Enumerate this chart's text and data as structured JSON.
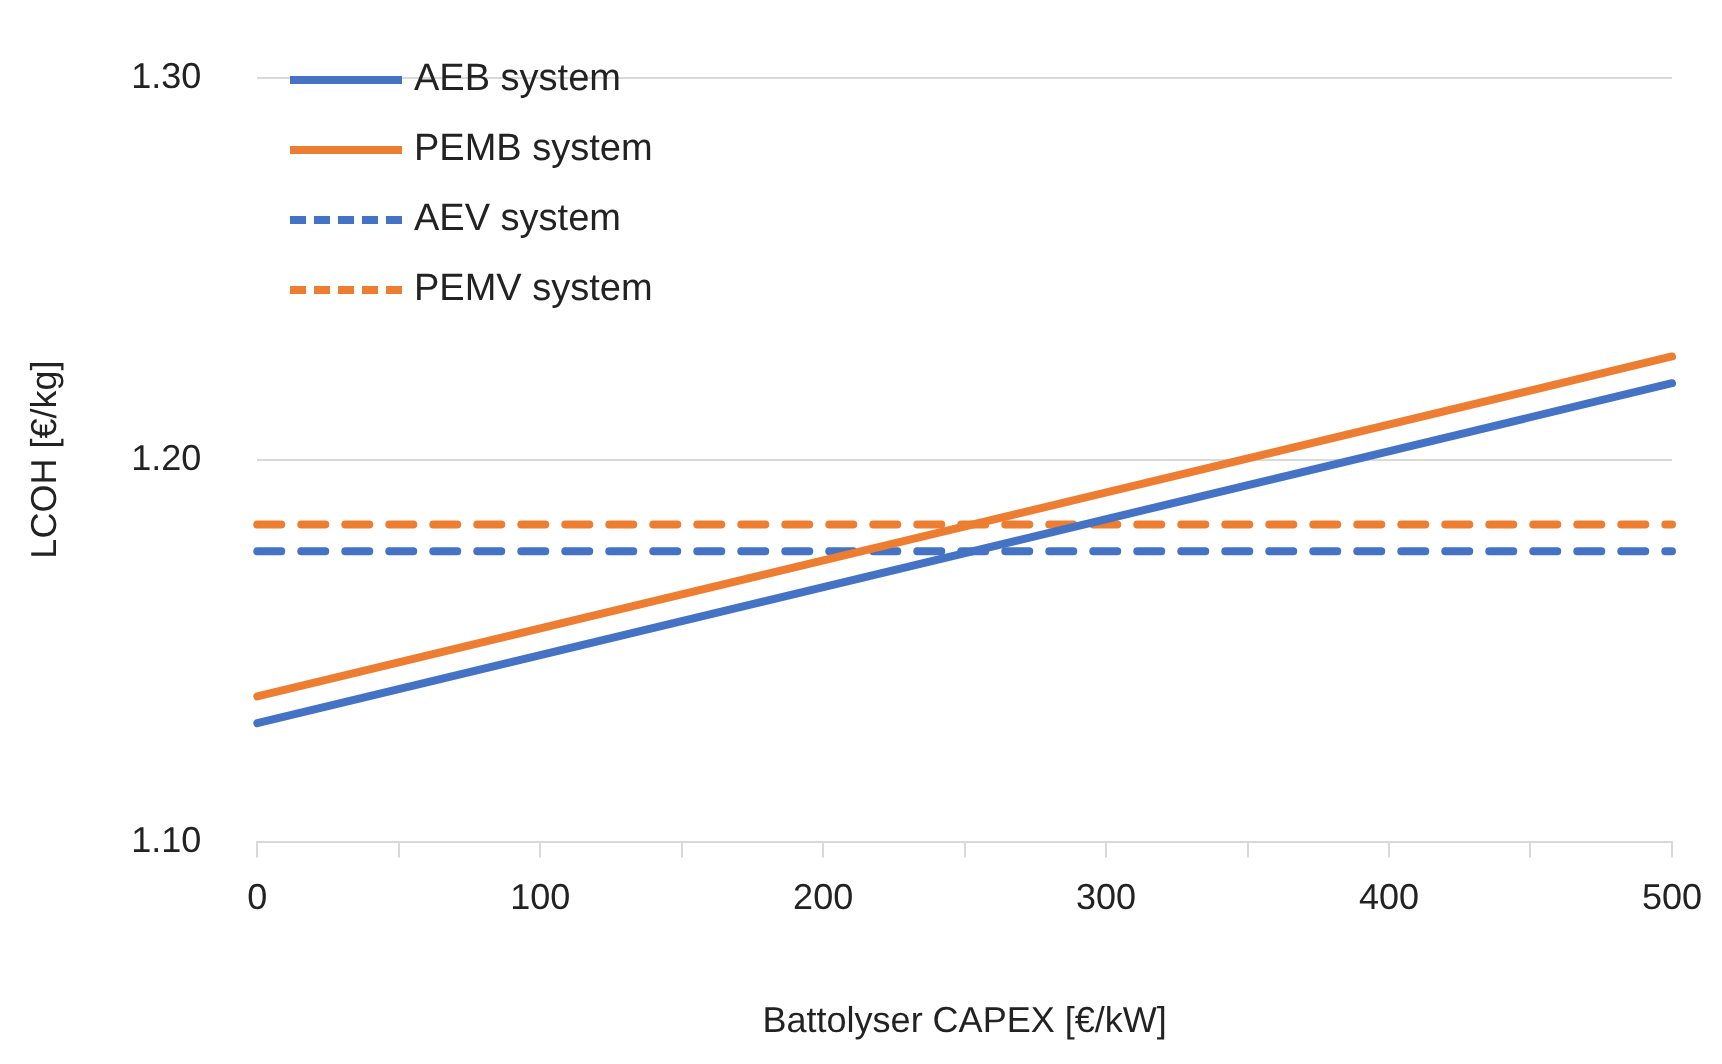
{
  "chart_data": {
    "type": "line",
    "xlabel": "Battolyser CAPEX [€/kW]",
    "ylabel": "LCOH [€/kg]",
    "x": [
      0,
      500
    ],
    "xlim": [
      0,
      500
    ],
    "xticks": [
      0,
      {
        "value": 50,
        "label": null
      },
      100,
      {
        "value": 150,
        "label": null
      },
      200,
      {
        "value": 250,
        "label": null
      },
      300,
      {
        "value": 350,
        "label": null
      },
      400,
      {
        "value": 450,
        "label": null
      },
      500
    ],
    "ylim": [
      1.1,
      1.3
    ],
    "yticks": [
      {
        "value": 1.1,
        "label": "1.10"
      },
      {
        "value": 1.2,
        "label": "1.20"
      },
      {
        "value": 1.3,
        "label": "1.30"
      }
    ],
    "grid": "y",
    "legend": "top left",
    "marker": "none",
    "series": [
      {
        "name": "AEB system",
        "color": "#4472c4",
        "values": [
          1.131,
          1.22
        ],
        "line_style": "solid"
      },
      {
        "name": "PEMB system",
        "color": "#ed7d31",
        "values": [
          1.138,
          1.227
        ],
        "line_style": "solid"
      },
      {
        "name": "AEV system",
        "color": "#4472c4",
        "values": [
          1.176,
          1.176
        ],
        "line_style": "dashed"
      },
      {
        "name": "PEMV system",
        "color": "#ed7d31",
        "values": [
          1.183,
          1.183
        ],
        "line_style": "dashed"
      }
    ]
  }
}
